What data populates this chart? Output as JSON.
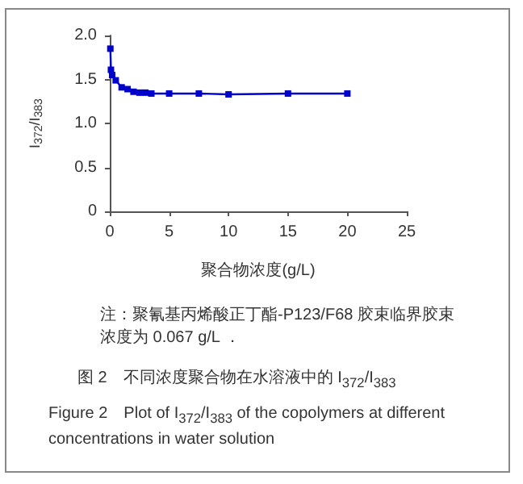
{
  "chart_data": {
    "type": "line",
    "xlabel": "聚合物浓度(g/L)",
    "ylabel": "I$_{372}$/I$_{383}$",
    "x": [
      0.05,
      0.1,
      0.2,
      0.5,
      1,
      1.5,
      2,
      2.5,
      3,
      3.5,
      5,
      7.5,
      10,
      15,
      20
    ],
    "series": [
      {
        "color": "#0000cc",
        "values": [
          1.85,
          1.61,
          1.55,
          1.49,
          1.41,
          1.39,
          1.36,
          1.35,
          1.35,
          1.34,
          1.34,
          1.34,
          1.33,
          1.34,
          1.34
        ]
      }
    ],
    "xlim": [
      0,
      25
    ],
    "xticks": [
      0,
      5,
      10,
      15,
      20,
      25
    ],
    "ylim": [
      0,
      2
    ],
    "yticks": [
      {
        "value": 0,
        "label": "0"
      },
      {
        "value": 0.5,
        "label": "0.5"
      },
      {
        "value": 1,
        "label": "1.0"
      },
      {
        "value": 1.5,
        "label": "1.5"
      },
      {
        "value": 2,
        "label": "2.0"
      }
    ],
    "marker": "square",
    "line_style": "solid",
    "grid": false,
    "annotations": [
      "注：聚氰基丙烯酸正丁酯-P123/F68 胶束临界胶束浓度为 0.067 g/L ．",
      "图 2　不同浓度聚合物在水溶液中的 I$_{372}$/I$_{383}$",
      "Figure 2　Plot of I$_{372}$/I$_{383}$ of the copolymers at different concentrations in water solution"
    ]
  }
}
